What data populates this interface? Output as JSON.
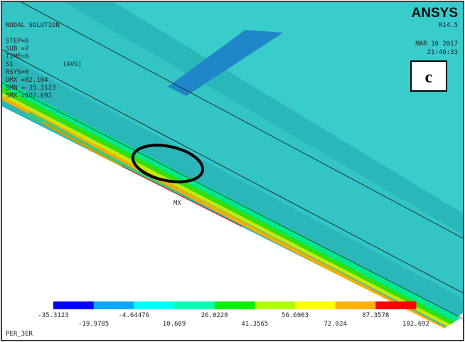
{
  "info": {
    "title": "NODAL SOLUTION",
    "lines": [
      "STEP=6",
      "SUB =7",
      "TIME=6",
      "S1",
      "(AVG)",
      "RSYS=0",
      "DMX =82.104",
      "SMN =-35.3123",
      "SMX =102.692"
    ]
  },
  "header": {
    "brand": "ANSYS",
    "version": "R14.5",
    "date": "MAR 10 2017",
    "time": "21:46:33"
  },
  "panel_label": "c",
  "marker": "MX",
  "footer": "PER_3ER",
  "legend": {
    "colors": [
      "#0000ff",
      "#00a8ff",
      "#00ffff",
      "#00ffb0",
      "#00f000",
      "#b0ff00",
      "#ffff00",
      "#ffb000",
      "#ff0000"
    ],
    "labels": [
      "-35.3123",
      "-19.9785",
      "-4.64476",
      "10.689",
      "26.0228",
      "41.3565",
      "56.6903",
      "72.024",
      "87.3578",
      "102.692"
    ]
  }
}
